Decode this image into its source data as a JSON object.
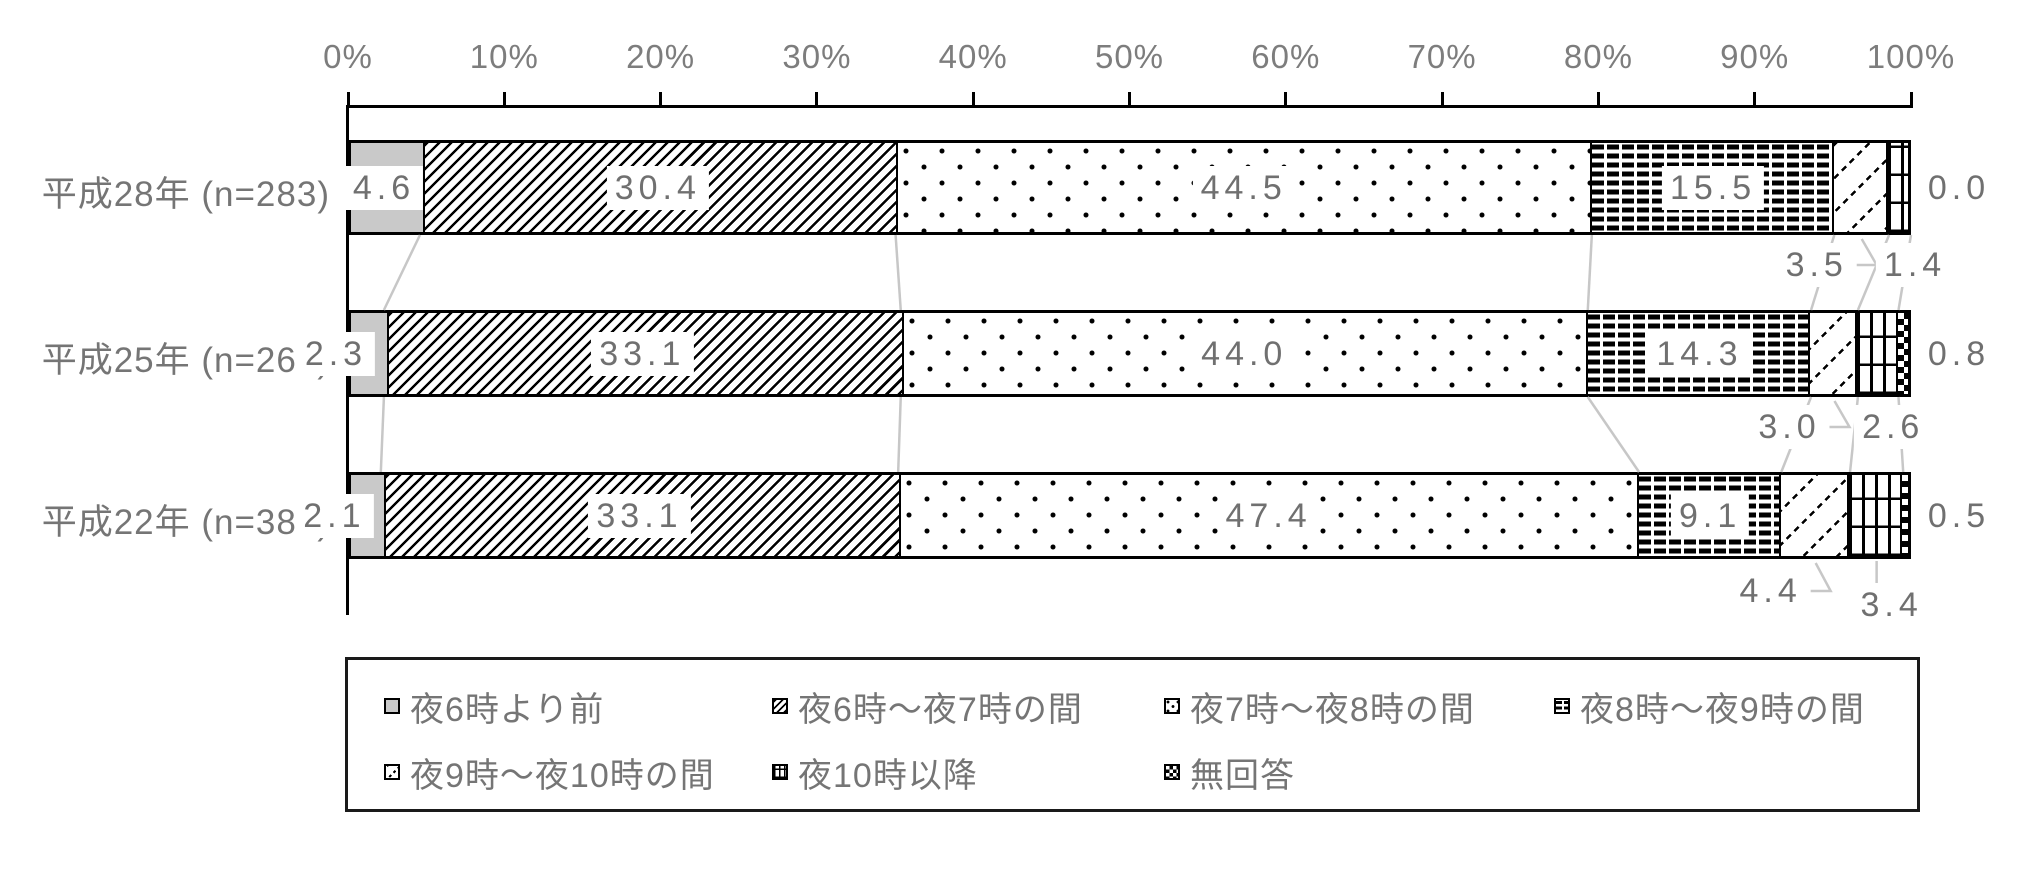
{
  "chart_data": {
    "type": "bar",
    "orientation": "horizontal",
    "stacked": true,
    "title": "",
    "xlabel": "",
    "ylabel": "",
    "xlim": [
      0,
      100
    ],
    "grid": false,
    "legend_position": "bottom",
    "x_tick_labels": [
      "0%",
      "10%",
      "20%",
      "30%",
      "40%",
      "50%",
      "60%",
      "70%",
      "80%",
      "90%",
      "100%"
    ],
    "categories": [
      "平成28年 (n=283)",
      "平成25年 (n=266)",
      "平成22年 (n=384)"
    ],
    "series": [
      {
        "name": "夜6時より前",
        "pattern": "gray",
        "values": [
          4.6,
          2.3,
          2.1
        ]
      },
      {
        "name": "夜6時～夜7時の間",
        "pattern": "diag",
        "values": [
          30.4,
          33.1,
          33.1
        ]
      },
      {
        "name": "夜7時～夜8時の間",
        "pattern": "dots",
        "values": [
          44.5,
          44.0,
          47.4
        ]
      },
      {
        "name": "夜8時～夜9時の間",
        "pattern": "hdash",
        "values": [
          15.5,
          14.3,
          9.1
        ]
      },
      {
        "name": "夜9時～夜10時の間",
        "pattern": "sdiag",
        "values": [
          3.5,
          3.0,
          4.4
        ]
      },
      {
        "name": "夜10時以降",
        "pattern": "vgrid",
        "values": [
          1.4,
          2.6,
          3.4
        ]
      },
      {
        "name": "無回答",
        "pattern": "black",
        "values": [
          0.0,
          0.8,
          0.5
        ]
      }
    ],
    "value_label_note": "segments 1-4 labeled inside bar on white boxes; segments 5-6 labeled below bar with gray leader lines; last segment labeled right of bar"
  },
  "colors": {
    "text": "#757575",
    "tick_text": "#7d7d7d",
    "bar_border": "#000000",
    "axis": "#000000",
    "series_line": "#c7c7c7",
    "gray_segment": "#c9c9c9",
    "label_bg": "#ffffff",
    "background": "#ffffff"
  }
}
